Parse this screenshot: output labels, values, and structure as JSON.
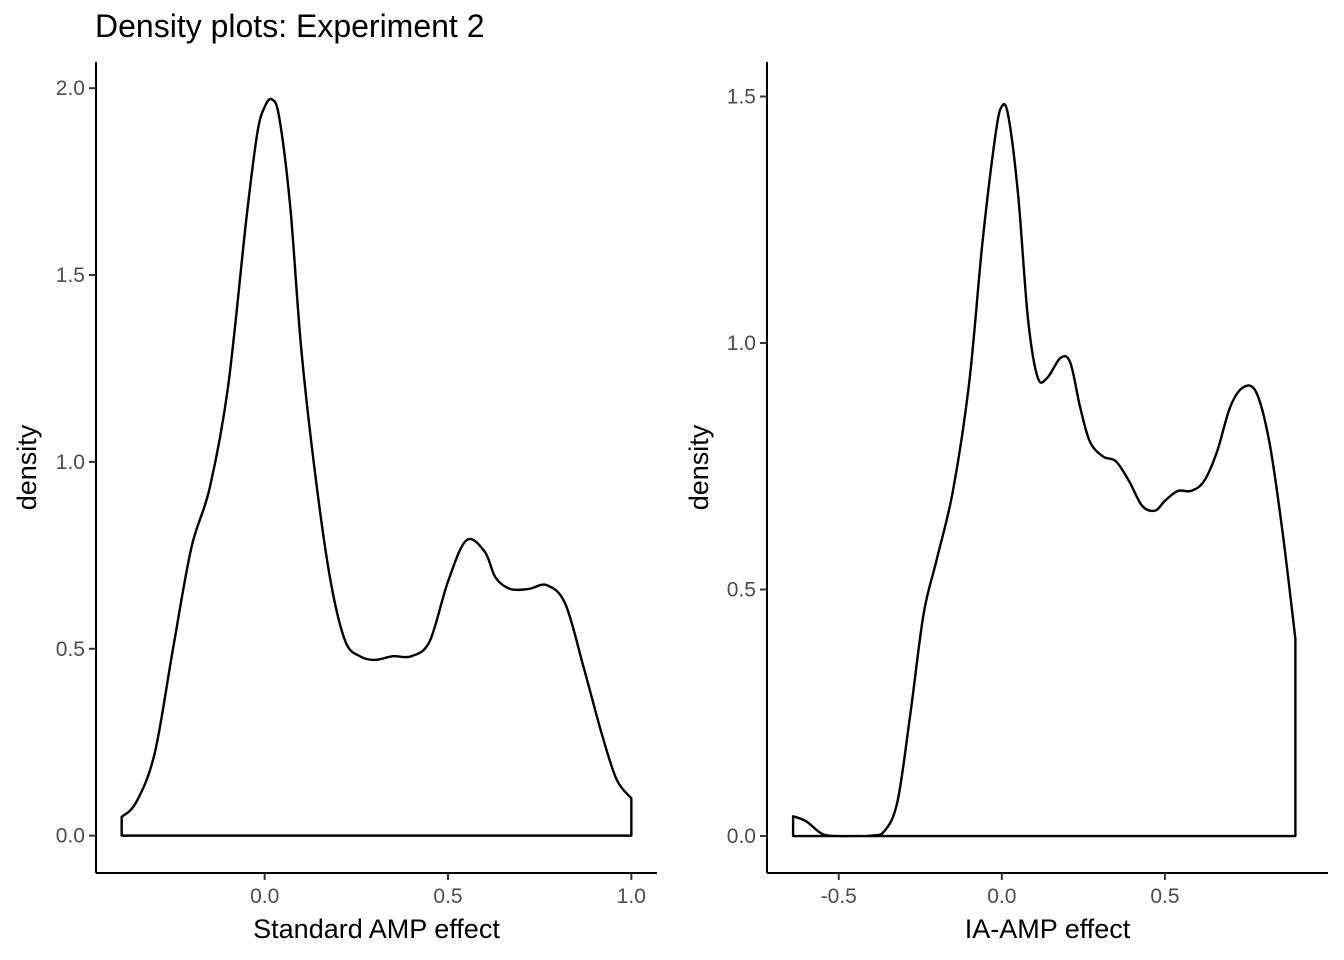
{
  "title": "Density plots: Experiment 2",
  "chart_data": [
    {
      "type": "area",
      "title": "",
      "xlabel": "Standard AMP effect",
      "ylabel": "density",
      "xlim": [
        -0.46,
        1.07
      ],
      "ylim": [
        -0.1,
        2.07
      ],
      "xticks": [
        0.0,
        0.5,
        1.0
      ],
      "xtick_labels": [
        "0.0",
        "0.5",
        "1.0"
      ],
      "yticks": [
        0.0,
        0.5,
        1.0,
        1.5,
        2.0
      ],
      "ytick_labels": [
        "0.0",
        "0.5",
        "1.0",
        "1.5",
        "2.0"
      ],
      "grid": false,
      "x": [
        -0.39,
        -0.35,
        -0.3,
        -0.25,
        -0.2,
        -0.15,
        -0.1,
        -0.05,
        -0.02,
        0.0,
        0.02,
        0.04,
        0.07,
        0.1,
        0.14,
        0.18,
        0.22,
        0.26,
        0.3,
        0.35,
        0.4,
        0.45,
        0.5,
        0.55,
        0.6,
        0.63,
        0.67,
        0.72,
        0.77,
        0.82,
        0.87,
        0.92,
        0.96,
        1.0
      ],
      "y": [
        0.05,
        0.09,
        0.22,
        0.5,
        0.77,
        0.93,
        1.2,
        1.65,
        1.88,
        1.95,
        1.97,
        1.92,
        1.68,
        1.3,
        0.95,
        0.68,
        0.52,
        0.48,
        0.47,
        0.48,
        0.48,
        0.52,
        0.68,
        0.79,
        0.76,
        0.69,
        0.66,
        0.66,
        0.67,
        0.62,
        0.45,
        0.27,
        0.15,
        0.1
      ]
    },
    {
      "type": "area",
      "title": "",
      "xlabel": "IA-AMP effect",
      "ylabel": "density",
      "xlim": [
        -0.72,
        1.0
      ],
      "ylim": [
        -0.075,
        1.57
      ],
      "xticks": [
        -0.5,
        0.0,
        0.5
      ],
      "xtick_labels": [
        "-0.5",
        "0.0",
        "0.5"
      ],
      "yticks": [
        0.0,
        0.5,
        1.0,
        1.5
      ],
      "ytick_labels": [
        "0.0",
        "0.5",
        "1.0",
        "1.5"
      ],
      "grid": false,
      "x": [
        -0.64,
        -0.6,
        -0.55,
        -0.5,
        -0.45,
        -0.4,
        -0.36,
        -0.32,
        -0.28,
        -0.24,
        -0.2,
        -0.15,
        -0.1,
        -0.06,
        -0.02,
        0.0,
        0.02,
        0.05,
        0.08,
        0.11,
        0.14,
        0.18,
        0.21,
        0.24,
        0.27,
        0.31,
        0.35,
        0.39,
        0.43,
        0.47,
        0.5,
        0.54,
        0.58,
        0.62,
        0.66,
        0.7,
        0.74,
        0.78,
        0.82,
        0.86,
        0.9
      ],
      "y": [
        0.04,
        0.03,
        0.004,
        0.0,
        0.0,
        0.001,
        0.01,
        0.07,
        0.25,
        0.45,
        0.56,
        0.7,
        0.92,
        1.2,
        1.42,
        1.48,
        1.46,
        1.3,
        1.05,
        0.93,
        0.93,
        0.97,
        0.96,
        0.87,
        0.8,
        0.77,
        0.76,
        0.72,
        0.67,
        0.66,
        0.68,
        0.7,
        0.7,
        0.72,
        0.78,
        0.87,
        0.91,
        0.9,
        0.8,
        0.62,
        0.4
      ]
    }
  ]
}
